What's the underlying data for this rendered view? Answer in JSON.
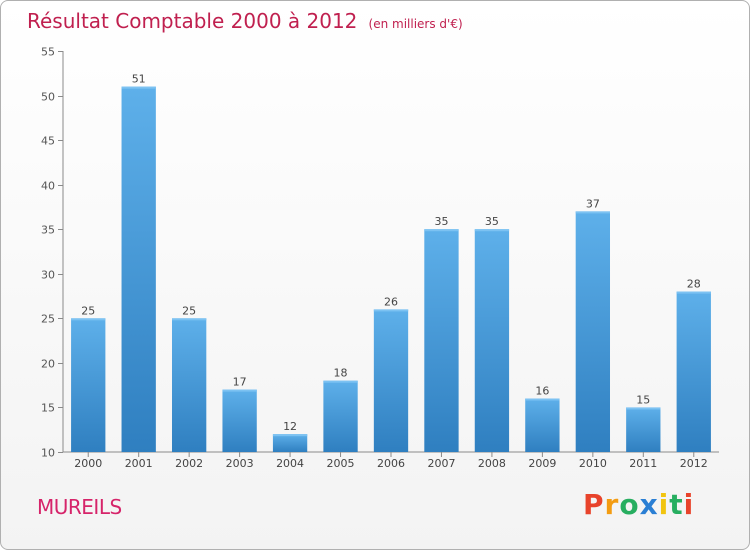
{
  "header": {
    "title": "Résultat Comptable 2000 à 2012",
    "unit": "(en milliers d'€)"
  },
  "commune": "MUREILS",
  "logo": {
    "text": "Proxiti",
    "letters": [
      {
        "ch": "P",
        "color": "#e8432b"
      },
      {
        "ch": "r",
        "color": "#f39c12"
      },
      {
        "ch": "o",
        "color": "#27ae60"
      },
      {
        "ch": "x",
        "color": "#2a7fd4"
      },
      {
        "ch": "i",
        "color": "#f1c40f"
      },
      {
        "ch": "t",
        "color": "#27ae60"
      },
      {
        "ch": "i",
        "color": "#e8432b"
      }
    ]
  },
  "chart_data": {
    "type": "bar",
    "title": "Résultat Comptable 2000 à 2012",
    "subtitle": "(en milliers d'€)",
    "categories": [
      "2000",
      "2001",
      "2002",
      "2003",
      "2004",
      "2005",
      "2006",
      "2007",
      "2008",
      "2009",
      "2010",
      "2011",
      "2012"
    ],
    "values": [
      25,
      51,
      25,
      17,
      12,
      18,
      26,
      35,
      35,
      16,
      37,
      15,
      28
    ],
    "ylim": [
      10,
      55
    ],
    "yticks": [
      10,
      15,
      20,
      25,
      30,
      35,
      40,
      45,
      50,
      55
    ],
    "xlabel": "",
    "ylabel": "",
    "grid": false,
    "bar_color": "#3d8fd6"
  }
}
